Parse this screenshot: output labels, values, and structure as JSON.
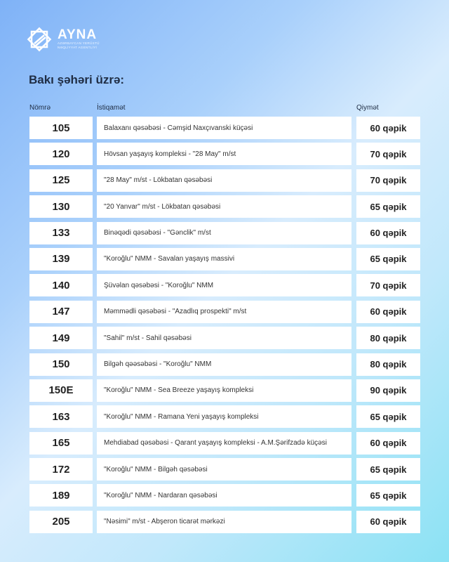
{
  "logo": {
    "brand": "AYNA",
    "sub_line1": "AZƏRBAYCAN YERÜSTÜ",
    "sub_line2": "NƏQLİYYAT AGENTLİYİ"
  },
  "title": "Bakı şəhəri üzrə:",
  "headers": {
    "number": "Nömrə",
    "direction": "İstiqamət",
    "price": "Qiymət"
  },
  "routes": [
    {
      "number": "105",
      "direction": "Balaxanı qəsəbəsi - Cəmşid Naxçıvanski küçəsi",
      "price": "60 qəpik"
    },
    {
      "number": "120",
      "direction": "Hövsan yaşayış kompleksi - \"28 May\" m/st",
      "price": "70 qəpik"
    },
    {
      "number": "125",
      "direction": "\"28 May\" m/st - Lökbatan qəsəbəsi",
      "price": "70 qəpik"
    },
    {
      "number": "130",
      "direction": "\"20 Yanvar\" m/st - Lökbatan qəsəbəsi",
      "price": "65 qəpik"
    },
    {
      "number": "133",
      "direction": "Binəqədi qəsəbəsi - \"Gənclik\" m/st",
      "price": "60 qəpik"
    },
    {
      "number": "139",
      "direction": "\"Koroğlu\" NMM - Savalan yaşayış massivi",
      "price": "65 qəpik"
    },
    {
      "number": "140",
      "direction": "Şüvəlan qəsəbəsi - \"Koroğlu\" NMM",
      "price": "70 qəpik"
    },
    {
      "number": "147",
      "direction": "Məmmədli qəsəbəsi - \"Azadlıq prospekti\" m/st",
      "price": "60 qəpik"
    },
    {
      "number": "149",
      "direction": "\"Sahil\" m/st - Sahil qəsəbəsi",
      "price": "80 qəpik"
    },
    {
      "number": "150",
      "direction": "Bilgəh qəəsəbəsi - \"Koroğlu\" NMM",
      "price": "80 qəpik"
    },
    {
      "number": "150E",
      "direction": "\"Koroğlu\" NMM - Sea Breeze yaşayış kompleksi",
      "price": "90 qəpik"
    },
    {
      "number": "163",
      "direction": "\"Koroğlu\" NMM - Ramana Yeni yaşayış kompleksi",
      "price": "65 qəpik"
    },
    {
      "number": "165",
      "direction": "Mehdiabad qəsəbəsi - Qarant yaşayış kompleksi - A.M.Şərifzadə küçəsi",
      "price": "60 qəpik"
    },
    {
      "number": "172",
      "direction": "\"Koroğlu\" NMM - Bilgəh qəsəbəsi",
      "price": "65 qəpik"
    },
    {
      "number": "189",
      "direction": "\"Koroğlu\" NMM - Nardaran qəsəbəsi",
      "price": "65 qəpik"
    },
    {
      "number": "205",
      "direction": "\"Nəsimi\" m/st - Abşeron ticarət mərkəzi",
      "price": "60 qəpik"
    }
  ]
}
